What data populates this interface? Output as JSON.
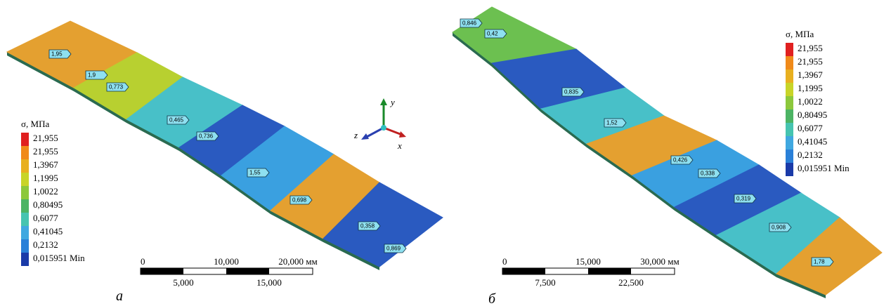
{
  "panels": [
    {
      "label": "а",
      "legend": {
        "title": "σ, МПа",
        "items": [
          "21,955",
          "21,955",
          "1,3967",
          "1,1995",
          "1,0022",
          "0,80495",
          "0,6077",
          "0,41045",
          "0,2132",
          "0,015951 Min"
        ]
      },
      "probes": [
        "1,95",
        "1,9",
        "0,773",
        "0,465",
        "0,736",
        "1,55",
        "0,698",
        "0,358",
        "0,869"
      ],
      "scale": {
        "top": [
          "0",
          "10,000",
          "20,000 мм"
        ],
        "bottom": [
          "5,000",
          "15,000"
        ]
      }
    },
    {
      "label": "б",
      "legend": {
        "title": "σ, МПа",
        "items": [
          "21,955",
          "21,955",
          "1,3967",
          "1,1995",
          "1,0022",
          "0,80495",
          "0,6077",
          "0,41045",
          "0,2132",
          "0,015951 Min"
        ]
      },
      "probes": [
        "0,846",
        "0,42",
        "0,835",
        "1,52",
        "0,426",
        "0,338",
        "0,319",
        "0,908",
        "1,78"
      ],
      "scale": {
        "top": [
          "0",
          "15,000",
          "30,000 мм"
        ],
        "bottom": [
          "7,500",
          "22,500"
        ]
      }
    }
  ],
  "triad": [
    "y",
    "z",
    "x"
  ]
}
